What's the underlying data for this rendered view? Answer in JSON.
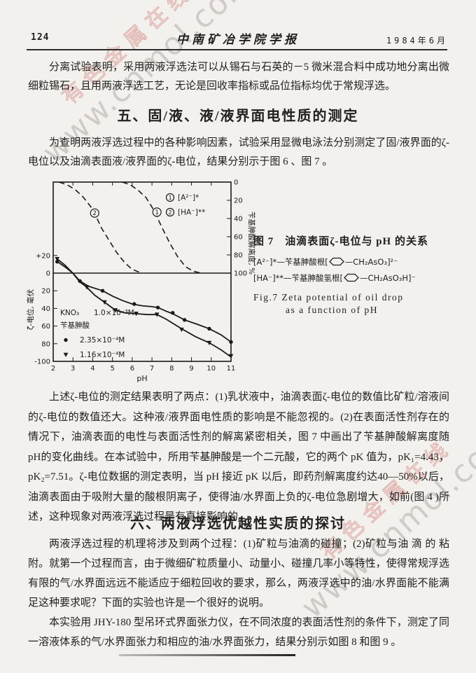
{
  "watermarks": {
    "brand": "有色金属在线",
    "site": "www.cnmol.com",
    "brand_color": "#ce605e",
    "site_color": "#9e948e"
  },
  "header": {
    "page_number": "124",
    "journal_title": "中南矿冶学院学报",
    "issue_date": "1984年6月"
  },
  "intro_paragraph": "分离试验表明，采用两液浮选法可以从锡石与石英的－5 微米混合料中成功地分离出微细粒锡石，且用两液浮选工艺，无论是回收率指标或品位指标均优于常规浮选。",
  "section5": {
    "heading": "五、固/液、液/液界面电性质的测定",
    "intro": "为查明两液浮选过程中的各种影响因素，试验采用显微电泳法分别测定了固/液界面的ζ-电位以及油滴表面液/液界面的ζ-电位，结果分别示于图 6 、图 7 。"
  },
  "figure7": {
    "caption_cn": "图 7　油滴表面ζ-电位与 pH 的关系",
    "formula_a_pre": "[A²⁻]*—苄基胂酸根[",
    "formula_a_post": "—CH₂AsO₃]²⁻",
    "formula_b_pre": "[HA⁻]**—苄基胂酸氢根[",
    "formula_b_post": "—CH₂AsO₃H]⁻",
    "caption_en_line1": "Fig.7  Zeta potential of oil drop",
    "caption_en_line2": "as a function of pH"
  },
  "discussion_paragraph": "上述ζ-电位的测定结果表明了两点：(1)乳状液中，油滴表面ζ-电位的数值比矿粒/溶液间的ζ-电位的数值还大。这种液/液界面电性质的影响是不能忽视的。(2)在表面活性剂存在的情况下，油滴表面的电性与表面活性剂的解离紧密相关，图 7 中画出了苄基胂酸解离度随pH的变化曲线。在本试验中，所用苄基胂酸是一个二元酸，它的两个 pK 值为，pK₁=4.43，pK₂=7.51。ζ-电位数据的测定表明，当 pH 接近 pK 以后，即药剂解离度约达40—50%以后，油滴表面由于吸附大量的酸根阴离子，使得油/水界面上负的ζ-电位急剧增大，如前(图 4 )所述，这种现象对两液浮选过程是有直接影响的。",
  "section6": {
    "heading": "六、两液浮选优越性实质的探讨",
    "para1": "两液浮选过程的机理将涉及到两个过程：(1)矿粒与油滴的碰撞；(2)矿粒与油 滴 的 粘附。就第一个过程而言，由于微细矿粒质量小、动量小、碰撞几率小等特性，使得常规浮选有限的气/水界面远远不能适应于细粒回收的要求，那么，两液浮选中的油/水界面能不能满足这种要求呢？下面的实验也许是一个很好的说明。",
    "para2": "本实验用 JHY-180 型吊环式界面张力仪，在不同浓度的表面活性剂的条件下，测定了同一溶液体系的气/水界面张力和相应的油/水界面张力，结果分别示如图 8 和图 9 。"
  },
  "chart_data": {
    "type": "line",
    "title": "油滴表面ζ-电位与pH的关系 (Fig.7 Zeta potential of oil drop as a function of pH)",
    "xlabel": "pH",
    "xlim": [
      2,
      11
    ],
    "x_ticks": [
      2,
      3,
      4,
      5,
      6,
      7,
      8,
      9,
      10,
      11
    ],
    "left_axis": {
      "label": "ζ-电位, 毫伏",
      "range": [
        20,
        -100
      ],
      "ticks": [
        {
          "v": 20,
          "t": "+20"
        },
        {
          "v": 0,
          "t": "0"
        },
        {
          "v": -20,
          "t": "20"
        },
        {
          "v": -40,
          "t": "40"
        },
        {
          "v": -60,
          "t": "60"
        },
        {
          "v": -80,
          "t": "80"
        },
        {
          "v": -100,
          "t": "-100"
        }
      ]
    },
    "right_axis": {
      "label": "苄基胂酸解离度, %",
      "range": [
        0,
        100
      ],
      "inverted": true,
      "ticks": [
        0,
        20,
        40,
        60,
        80,
        100
      ]
    },
    "in_plot_legend": [
      {
        "digit": "1",
        "label": "[A²⁻]*"
      },
      {
        "digit": "2",
        "label": "[HA⁻]**"
      }
    ],
    "conditions_legend": {
      "electrolyte": "KNO₃",
      "electrolyte_conc": "1.0×10⁻³M",
      "reagent": "苄基胂酸",
      "entries": [
        {
          "marker": "dot",
          "conc": "2.35×10⁻⁴M"
        },
        {
          "marker": "tri",
          "conc": "1.16×10⁻⁴M"
        }
      ]
    },
    "series": [
      {
        "name": "ζ-电位 (苄基胂酸 2.35×10⁻⁴M, ●)",
        "axis": "mv",
        "style": "solid",
        "marker": "dot",
        "points": [
          [
            2.15,
            14
          ],
          [
            2.6,
            7
          ],
          [
            3.0,
            0
          ],
          [
            3.35,
            -9
          ],
          [
            3.8,
            -15
          ],
          [
            4.5,
            -20
          ],
          [
            5.0,
            -26
          ],
          [
            5.5,
            -31
          ],
          [
            6.0,
            -35
          ],
          [
            6.5,
            -37
          ],
          [
            7.0,
            -38
          ],
          [
            7.3,
            -39
          ],
          [
            7.7,
            -43
          ],
          [
            8.05,
            -46
          ],
          [
            8.65,
            -53
          ],
          [
            9.3,
            -58
          ],
          [
            9.9,
            -63
          ],
          [
            10.5,
            -70
          ],
          [
            11,
            -78
          ]
        ],
        "marker_points": [
          [
            2.2,
            13
          ],
          [
            3.35,
            -9
          ],
          [
            4.5,
            -20
          ],
          [
            6.1,
            -35
          ],
          [
            7.3,
            -39
          ],
          [
            8.05,
            -45
          ],
          [
            8.65,
            -53
          ],
          [
            9.9,
            -63
          ],
          [
            11,
            -78
          ]
        ]
      },
      {
        "name": "ζ-电位 (苄基胂酸 1.16×10⁻⁴M, ▼)",
        "axis": "mv",
        "style": "solid",
        "marker": "tri",
        "points": [
          [
            2.15,
            17
          ],
          [
            2.6,
            9
          ],
          [
            2.95,
            1
          ],
          [
            3.35,
            -10
          ],
          [
            3.7,
            -16
          ],
          [
            4.1,
            -25
          ],
          [
            4.6,
            -33
          ],
          [
            5.15,
            -42
          ],
          [
            5.6,
            -45
          ],
          [
            6.2,
            -46
          ],
          [
            6.8,
            -47
          ],
          [
            7.25,
            -47
          ],
          [
            7.7,
            -52
          ],
          [
            8.5,
            -63
          ],
          [
            9.2,
            -72
          ],
          [
            9.9,
            -79
          ],
          [
            10.5,
            -87
          ],
          [
            11,
            -95
          ]
        ],
        "marker_points": [
          [
            2.2,
            16
          ],
          [
            3.7,
            -16
          ],
          [
            4.6,
            -33
          ],
          [
            5.15,
            -42
          ],
          [
            6.2,
            -46
          ],
          [
            7.25,
            -47
          ],
          [
            8.5,
            -64
          ],
          [
            9.9,
            -79
          ],
          [
            11,
            -94
          ]
        ]
      },
      {
        "name": "② [HA⁻]** 苄基胂酸解离度 (pK₁=4.43)",
        "axis": "pct",
        "style": "dashed",
        "marker": "none",
        "badge": {
          "digit": "2",
          "x": 4.1,
          "y": 34
        },
        "points": [
          [
            2.3,
            0
          ],
          [
            2.7,
            3
          ],
          [
            3.1,
            8
          ],
          [
            3.5,
            16
          ],
          [
            3.9,
            27
          ],
          [
            4.2,
            39
          ],
          [
            4.43,
            50
          ],
          [
            4.8,
            63
          ],
          [
            5.2,
            77
          ],
          [
            5.6,
            88
          ],
          [
            6.0,
            96
          ],
          [
            6.5,
            100
          ]
        ]
      },
      {
        "name": "① [A²⁻]* 苄基胂酸解离度 (pK₂=7.51)",
        "axis": "pct",
        "style": "dashed",
        "marker": "none",
        "badge": {
          "digit": "1",
          "x": 7.25,
          "y": 33
        },
        "points": [
          [
            5.5,
            0
          ],
          [
            5.9,
            3
          ],
          [
            6.3,
            9
          ],
          [
            6.7,
            17
          ],
          [
            7.1,
            31
          ],
          [
            7.51,
            50
          ],
          [
            7.9,
            67
          ],
          [
            8.3,
            82
          ],
          [
            8.7,
            93
          ],
          [
            9.1,
            98
          ],
          [
            9.5,
            100
          ]
        ]
      }
    ]
  }
}
